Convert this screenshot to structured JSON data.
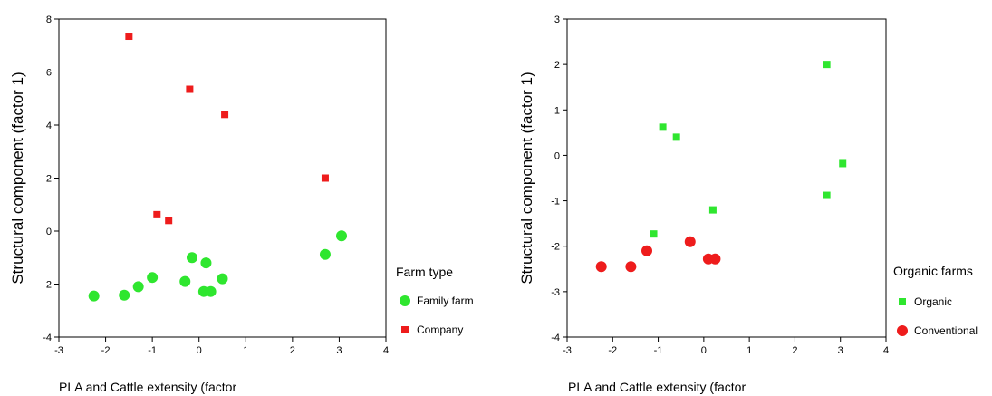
{
  "colors": {
    "green": "#2fe62f",
    "red": "#ee1c1c"
  },
  "chart_data": [
    {
      "type": "scatter",
      "xlabel": "PLA and Cattle extensity (factor",
      "ylabel": "Structural component (factor 1)",
      "xlim": [
        -3,
        4
      ],
      "ylim": [
        -4,
        8
      ],
      "xticks": [
        -3,
        -2,
        -1,
        0,
        1,
        2,
        3,
        4
      ],
      "yticks": [
        -4,
        -2,
        0,
        2,
        4,
        6,
        8
      ],
      "grid": false,
      "legend": {
        "title": "Farm type",
        "position": "right"
      },
      "series": [
        {
          "name": "Family farm",
          "marker": "circle",
          "color": "green",
          "points": [
            [
              -2.25,
              -2.45
            ],
            [
              -1.6,
              -2.42
            ],
            [
              -1.3,
              -2.1
            ],
            [
              -1.0,
              -1.75
            ],
            [
              -0.3,
              -1.9
            ],
            [
              -0.15,
              -1.0
            ],
            [
              0.15,
              -1.2
            ],
            [
              0.1,
              -2.28
            ],
            [
              0.25,
              -2.28
            ],
            [
              0.5,
              -1.8
            ],
            [
              2.7,
              -0.88
            ],
            [
              3.05,
              -0.18
            ]
          ]
        },
        {
          "name": "Company",
          "marker": "square",
          "color": "red",
          "points": [
            [
              -1.5,
              7.35
            ],
            [
              -0.2,
              5.35
            ],
            [
              0.55,
              4.4
            ],
            [
              2.7,
              2.0
            ],
            [
              -0.9,
              0.62
            ],
            [
              -0.65,
              0.4
            ]
          ]
        }
      ]
    },
    {
      "type": "scatter",
      "xlabel": "PLA and Cattle extensity (factor",
      "ylabel": "Structural component (factor 1)",
      "xlim": [
        -3,
        4
      ],
      "ylim": [
        -4,
        3
      ],
      "xticks": [
        -3,
        -2,
        -1,
        0,
        1,
        2,
        3,
        4
      ],
      "yticks": [
        -4,
        -3,
        -2,
        -1,
        0,
        1,
        2,
        3
      ],
      "grid": false,
      "legend": {
        "title": "Organic farms",
        "position": "right"
      },
      "series": [
        {
          "name": "Organic",
          "marker": "square",
          "color": "green",
          "points": [
            [
              2.7,
              2.0
            ],
            [
              -0.9,
              0.62
            ],
            [
              -0.6,
              0.4
            ],
            [
              3.05,
              -0.18
            ],
            [
              2.7,
              -0.88
            ],
            [
              0.2,
              -1.2
            ],
            [
              -1.1,
              -1.73
            ]
          ]
        },
        {
          "name": "Conventional",
          "marker": "circle",
          "color": "red",
          "points": [
            [
              -2.25,
              -2.45
            ],
            [
              -1.6,
              -2.45
            ],
            [
              -1.25,
              -2.1
            ],
            [
              -0.3,
              -1.9
            ],
            [
              0.1,
              -2.28
            ],
            [
              0.25,
              -2.28
            ]
          ]
        }
      ]
    }
  ]
}
